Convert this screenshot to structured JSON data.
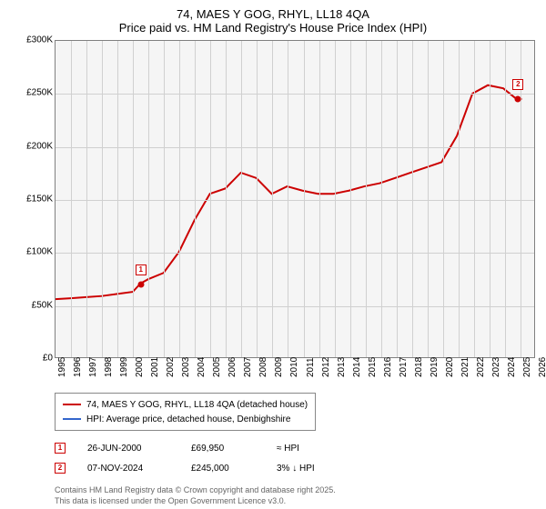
{
  "title_line1": "74, MAES Y GOG, RHYL, LL18 4QA",
  "title_line2": "Price paid vs. HM Land Registry's House Price Index (HPI)",
  "chart": {
    "type": "line",
    "background_color": "#f5f5f5",
    "border_color": "#808080",
    "grid_color": "#d0d0d0",
    "x_axis": {
      "min": 1995,
      "max": 2026,
      "ticks": [
        1995,
        1996,
        1997,
        1998,
        1999,
        2000,
        2001,
        2002,
        2003,
        2004,
        2005,
        2006,
        2007,
        2008,
        2009,
        2010,
        2011,
        2012,
        2013,
        2014,
        2015,
        2016,
        2017,
        2018,
        2019,
        2020,
        2021,
        2022,
        2023,
        2024,
        2025,
        2026
      ],
      "label_fontsize": 10
    },
    "y_axis": {
      "min": 0,
      "max": 300000,
      "ticks": [
        0,
        50000,
        100000,
        150000,
        200000,
        250000,
        300000
      ],
      "tick_labels": [
        "£0",
        "£50K",
        "£100K",
        "£150K",
        "£200K",
        "£250K",
        "£300K"
      ],
      "label_fontsize": 10
    },
    "series": [
      {
        "name": "74, MAES Y GOG, RHYL, LL18 4QA (detached house)",
        "color": "#cc0000",
        "line_width": 2,
        "points": [
          [
            1995,
            55000
          ],
          [
            1996,
            56000
          ],
          [
            1997,
            57000
          ],
          [
            1998,
            58000
          ],
          [
            1999,
            60000
          ],
          [
            2000,
            62000
          ],
          [
            2000.5,
            69950
          ],
          [
            2001,
            74000
          ],
          [
            2002,
            80000
          ],
          [
            2003,
            100000
          ],
          [
            2004,
            130000
          ],
          [
            2005,
            155000
          ],
          [
            2006,
            160000
          ],
          [
            2007,
            175000
          ],
          [
            2008,
            170000
          ],
          [
            2009,
            155000
          ],
          [
            2010,
            162000
          ],
          [
            2011,
            158000
          ],
          [
            2012,
            155000
          ],
          [
            2013,
            155000
          ],
          [
            2014,
            158000
          ],
          [
            2015,
            162000
          ],
          [
            2016,
            165000
          ],
          [
            2017,
            170000
          ],
          [
            2018,
            175000
          ],
          [
            2019,
            180000
          ],
          [
            2020,
            185000
          ],
          [
            2021,
            210000
          ],
          [
            2022,
            250000
          ],
          [
            2023,
            258000
          ],
          [
            2024,
            255000
          ],
          [
            2024.85,
            245000
          ],
          [
            2025.2,
            245000
          ]
        ]
      },
      {
        "name": "HPI: Average price, detached house, Denbighshire",
        "color": "#3366cc",
        "line_width": 1.5,
        "points": []
      }
    ],
    "markers": [
      {
        "label": "1",
        "x": 2000.5,
        "y": 69950,
        "color": "#cc0000"
      },
      {
        "label": "2",
        "x": 2024.85,
        "y": 245000,
        "color": "#cc0000"
      }
    ]
  },
  "legend": {
    "items": [
      {
        "color": "#cc0000",
        "label": "74, MAES Y GOG, RHYL, LL18 4QA (detached house)"
      },
      {
        "color": "#3366cc",
        "label": "HPI: Average price, detached house, Denbighshire"
      }
    ]
  },
  "sales": [
    {
      "marker": "1",
      "marker_color": "#cc0000",
      "date": "26-JUN-2000",
      "price": "£69,950",
      "hpi": "≈ HPI"
    },
    {
      "marker": "2",
      "marker_color": "#cc0000",
      "date": "07-NOV-2024",
      "price": "£245,000",
      "hpi": "3% ↓ HPI"
    }
  ],
  "attribution_line1": "Contains HM Land Registry data © Crown copyright and database right 2025.",
  "attribution_line2": "This data is licensed under the Open Government Licence v3.0."
}
